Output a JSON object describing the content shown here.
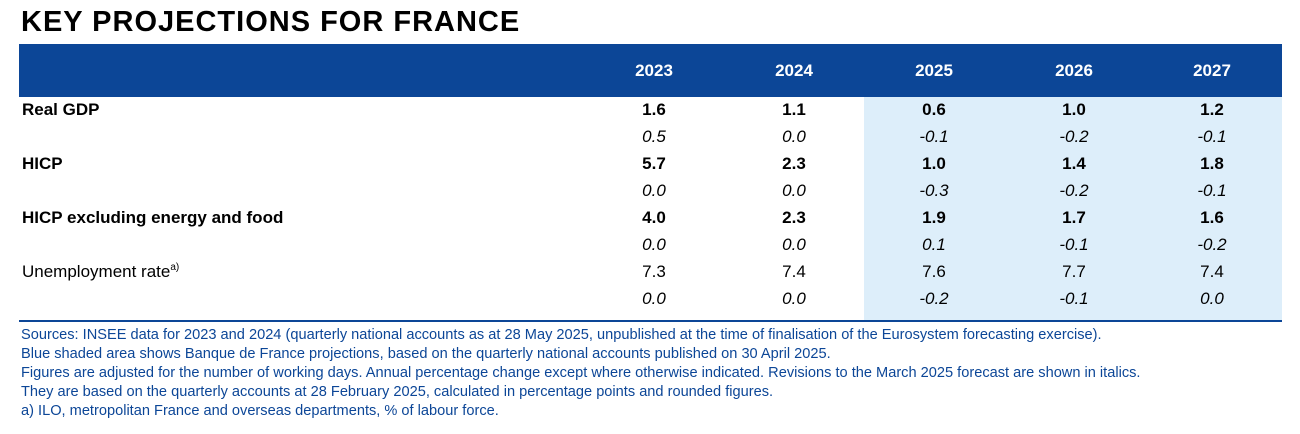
{
  "title": "KEY PROJECTIONS FOR FRANCE",
  "years": [
    "2023",
    "2024",
    "2025",
    "2026",
    "2027"
  ],
  "colors": {
    "header_bg": "#0c4697",
    "projection_shade": "#ddeefa",
    "notes_text": "#0c4697"
  },
  "rows": [
    {
      "label": "Real GDP",
      "label_style": "bold",
      "values": [
        "1.6",
        "1.1",
        "0.6",
        "1.0",
        "1.2"
      ],
      "values_style": "bold"
    },
    {
      "label": "",
      "label_style": "normal",
      "values": [
        "0.5",
        "0.0",
        "-0.1",
        "-0.2",
        "-0.1"
      ],
      "values_style": "italic"
    },
    {
      "label": "HICP",
      "label_style": "bold",
      "values": [
        "5.7",
        "2.3",
        "1.0",
        "1.4",
        "1.8"
      ],
      "values_style": "bold"
    },
    {
      "label": "",
      "label_style": "normal",
      "values": [
        "0.0",
        "0.0",
        "-0.3",
        "-0.2",
        "-0.1"
      ],
      "values_style": "italic"
    },
    {
      "label": "HICP excluding energy and food",
      "label_style": "bold",
      "values": [
        "4.0",
        "2.3",
        "1.9",
        "1.7",
        "1.6"
      ],
      "values_style": "bold"
    },
    {
      "label": "",
      "label_style": "normal",
      "values": [
        "0.0",
        "0.0",
        "0.1",
        "-0.1",
        "-0.2"
      ],
      "values_style": "italic"
    },
    {
      "label": "Unemployment rate",
      "label_sup": "a)",
      "label_style": "normal",
      "values": [
        "7.3",
        "7.4",
        "7.6",
        "7.7",
        "7.4"
      ],
      "values_style": "normal"
    },
    {
      "label": "",
      "label_style": "normal",
      "values": [
        "0.0",
        "0.0",
        "-0.2",
        "-0.1",
        "0.0"
      ],
      "values_style": "italic"
    }
  ],
  "notes": [
    "Sources: INSEE data for 2023 and 2024 (quarterly national accounts as at 28 May 2025, unpublished at the time of finalisation of the Eurosystem forecasting exercise).",
    "Blue shaded area shows Banque de France projections, based on the quarterly national accounts published on 30 April 2025.",
    "Figures are adjusted for the number of working days. Annual percentage change except where otherwise indicated. Revisions to the March 2025 forecast are shown in italics.",
    "They are based on the quarterly accounts at 28 February 2025, calculated in percentage points and rounded figures.",
    "a)  ILO, metropolitan France and overseas departments, % of labour force."
  ]
}
